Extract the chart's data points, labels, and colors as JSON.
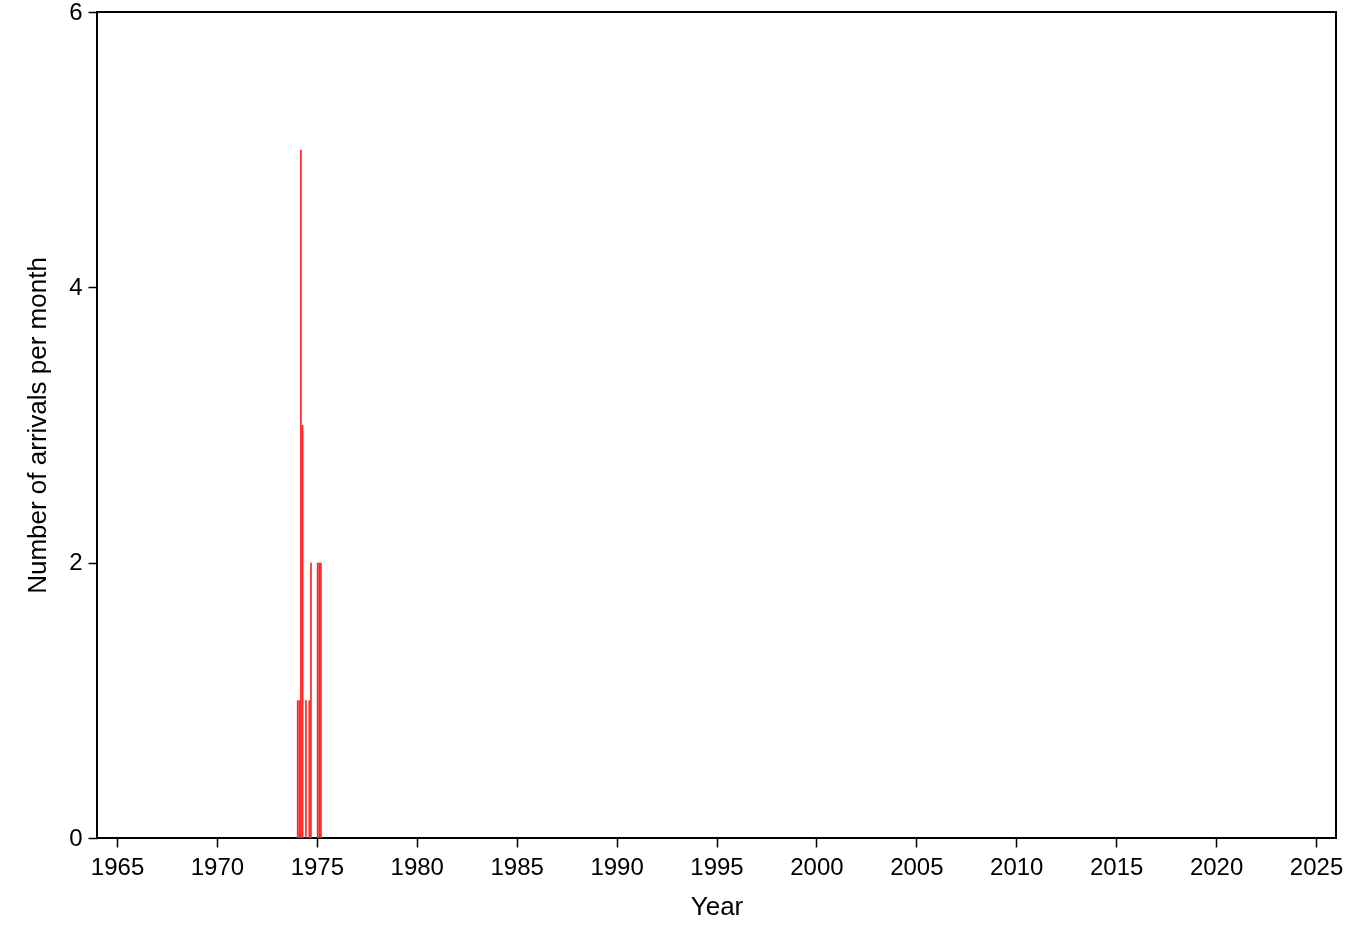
{
  "chart_data": {
    "type": "bar",
    "xlabel": "Year",
    "ylabel": "Number of arrivals per month",
    "x": [
      "1974-01",
      "1974-02",
      "1974-03",
      "1974-04",
      "1974-06",
      "1974-08",
      "1974-09",
      "1975-01",
      "1975-02",
      "1975-03"
    ],
    "values": [
      1,
      1,
      5,
      3,
      1,
      1,
      2,
      2,
      2,
      2
    ],
    "color": "#ff2020",
    "xlim": [
      "1964",
      "2026"
    ],
    "xticks": [
      "1965",
      "1970",
      "1975",
      "1980",
      "1985",
      "1990",
      "1995",
      "2000",
      "2005",
      "2010",
      "2015",
      "2020",
      "2025"
    ],
    "ylim": [
      0,
      6
    ],
    "yticks": [
      0,
      2,
      4,
      6
    ],
    "grid": false
  }
}
